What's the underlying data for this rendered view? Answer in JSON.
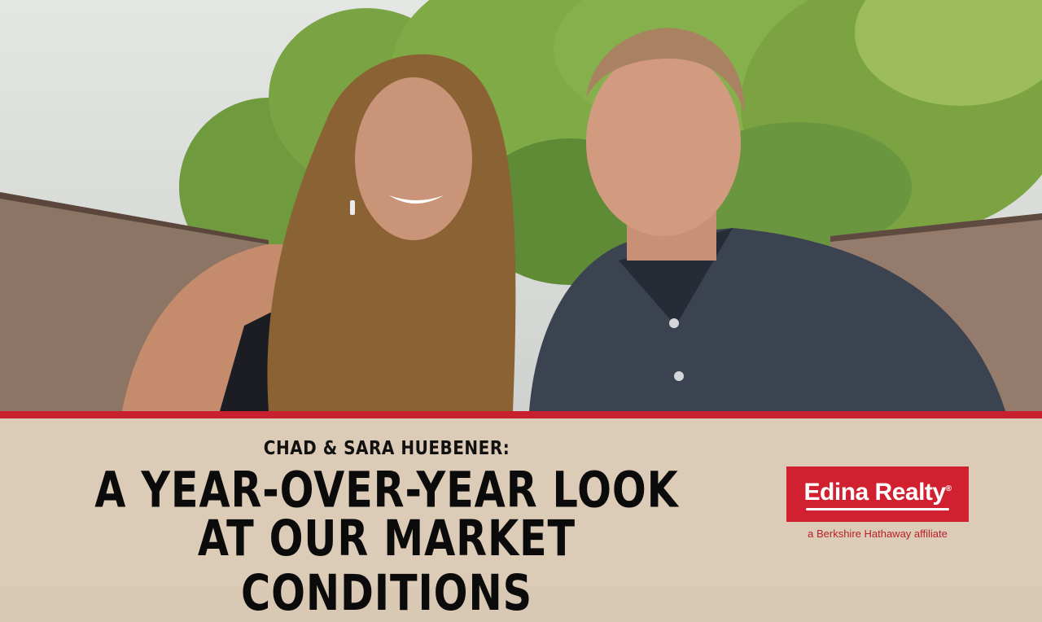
{
  "banner": {
    "subtitle": "CHAD & SARA HUEBENER:",
    "headline_line1": "A YEAR-OVER-YEAR LOOK",
    "headline_line2": "AT OUR MARKET CONDITIONS"
  },
  "logo": {
    "brand": "Edina Realty",
    "registered": "®",
    "tagline": "a Berkshire Hathaway affiliate"
  },
  "colors": {
    "accent_red": "#c8202e",
    "banner_beige": "#dccbb6",
    "headline_text": "#0b0b0b"
  }
}
